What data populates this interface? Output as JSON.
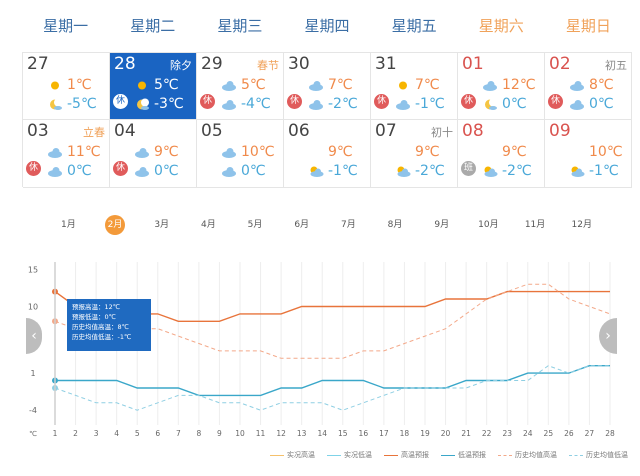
{
  "weekdays": [
    "星期一",
    "星期二",
    "星期三",
    "星期四",
    "星期五",
    "星期六",
    "星期日"
  ],
  "calendar": [
    {
      "day": "27",
      "lunar": "",
      "lunar_festival": false,
      "badge": "",
      "high": "1℃",
      "low": "-5℃",
      "hi_icon": "sun",
      "lo_icon": "moon",
      "selected": false,
      "holiday": false
    },
    {
      "day": "28",
      "lunar": "除夕",
      "lunar_festival": false,
      "badge": "休",
      "high": "5℃",
      "low": "-3℃",
      "hi_icon": "sun",
      "lo_icon": "moon",
      "selected": true,
      "holiday": false
    },
    {
      "day": "29",
      "lunar": "春节",
      "lunar_festival": true,
      "badge": "休",
      "high": "5℃",
      "low": "-4℃",
      "hi_icon": "cloud",
      "lo_icon": "cloud",
      "selected": false,
      "holiday": false
    },
    {
      "day": "30",
      "lunar": "",
      "lunar_festival": false,
      "badge": "休",
      "high": "7℃",
      "low": "-2℃",
      "hi_icon": "cloud",
      "lo_icon": "cloud",
      "selected": false,
      "holiday": false
    },
    {
      "day": "31",
      "lunar": "",
      "lunar_festival": false,
      "badge": "休",
      "high": "7℃",
      "low": "-1℃",
      "hi_icon": "sun",
      "lo_icon": "cloud",
      "selected": false,
      "holiday": false
    },
    {
      "day": "01",
      "lunar": "",
      "lunar_festival": false,
      "badge": "休",
      "high": "12℃",
      "low": "0℃",
      "hi_icon": "cloud",
      "lo_icon": "moon",
      "selected": false,
      "holiday": true
    },
    {
      "day": "02",
      "lunar": "初五",
      "lunar_festival": false,
      "badge": "休",
      "high": "8℃",
      "low": "0℃",
      "hi_icon": "cloud",
      "lo_icon": "cloud",
      "selected": false,
      "holiday": true
    },
    {
      "day": "03",
      "lunar": "立春",
      "lunar_festival": true,
      "badge": "休",
      "high": "11℃",
      "low": "0℃",
      "hi_icon": "cloud",
      "lo_icon": "cloud",
      "selected": false,
      "holiday": false
    },
    {
      "day": "04",
      "lunar": "",
      "lunar_festival": false,
      "badge": "休",
      "high": "9℃",
      "low": "0℃",
      "hi_icon": "cloud",
      "lo_icon": "cloud",
      "selected": false,
      "holiday": false
    },
    {
      "day": "05",
      "lunar": "",
      "lunar_festival": false,
      "badge": "",
      "high": "10℃",
      "low": "0℃",
      "hi_icon": "cloud",
      "lo_icon": "cloud",
      "selected": false,
      "holiday": false
    },
    {
      "day": "06",
      "lunar": "",
      "lunar_festival": false,
      "badge": "",
      "high": "9℃",
      "low": "-1℃",
      "hi_icon": "",
      "lo_icon": "partly",
      "selected": false,
      "holiday": false
    },
    {
      "day": "07",
      "lunar": "初十",
      "lunar_festival": false,
      "badge": "",
      "high": "9℃",
      "low": "-2℃",
      "hi_icon": "",
      "lo_icon": "partly",
      "selected": false,
      "holiday": false
    },
    {
      "day": "08",
      "lunar": "",
      "lunar_festival": false,
      "badge": "班",
      "high": "9℃",
      "low": "-2℃",
      "hi_icon": "",
      "lo_icon": "partly",
      "selected": false,
      "holiday": true
    },
    {
      "day": "09",
      "lunar": "",
      "lunar_festival": false,
      "badge": "",
      "high": "10℃",
      "low": "-1℃",
      "hi_icon": "",
      "lo_icon": "partly",
      "selected": false,
      "holiday": true
    }
  ],
  "months": [
    "1月",
    "2月",
    "3月",
    "4月",
    "5月",
    "6月",
    "7月",
    "8月",
    "9月",
    "10月",
    "11月",
    "12月"
  ],
  "active_month": 1,
  "tooltip": {
    "line1": "预报高温：12℃",
    "line2": "预报低温：0℃",
    "line3": "历史均值高温：8℃",
    "line4": "历史均值低温：-1℃"
  },
  "legend": [
    "实况高温",
    "实况低温",
    "高温预报",
    "低温预报",
    "历史均值高温",
    "历史均值低温"
  ],
  "colors": {
    "actual_high": "#f5c16c",
    "actual_low": "#7fd3e8",
    "forecast_high": "#e8743b",
    "forecast_low": "#3aa7c9",
    "hist_high": "#f3a98a",
    "hist_low": "#8fcfe3"
  },
  "chart_data": {
    "type": "line",
    "x": [
      1,
      2,
      3,
      4,
      5,
      6,
      7,
      8,
      9,
      10,
      11,
      12,
      13,
      14,
      15,
      16,
      17,
      18,
      19,
      20,
      21,
      22,
      23,
      24,
      25,
      26,
      27,
      28
    ],
    "xlabel": "",
    "ylabel": "℃",
    "y_ticks": [
      15,
      10,
      1,
      -4
    ],
    "ylim": [
      -6,
      16
    ],
    "series": [
      {
        "name": "高温预报",
        "values": [
          12,
          10,
          9,
          9,
          9,
          9,
          8,
          8,
          8,
          9,
          9,
          9,
          10,
          10,
          10,
          10,
          10,
          10,
          10,
          11,
          11,
          11,
          12,
          12,
          12,
          12,
          12,
          12
        ],
        "style": "solid"
      },
      {
        "name": "低温预报",
        "values": [
          0,
          0,
          0,
          0,
          -1,
          -1,
          -1,
          -2,
          -2,
          -2,
          -2,
          -1,
          -1,
          0,
          0,
          0,
          -1,
          -1,
          -1,
          -1,
          0,
          0,
          0,
          1,
          1,
          1,
          2,
          2
        ],
        "style": "solid"
      },
      {
        "name": "历史均值高温",
        "values": [
          8,
          7,
          7,
          7,
          7,
          7,
          6,
          5,
          4,
          4,
          4,
          3,
          3,
          3,
          3,
          4,
          4,
          5,
          6,
          7,
          9,
          11,
          12,
          13,
          13,
          11,
          10,
          9
        ],
        "style": "dashed"
      },
      {
        "name": "历史均值低温",
        "values": [
          -1,
          -2,
          -3,
          -3,
          -4,
          -3,
          -2,
          -2,
          -3,
          -3,
          -4,
          -3,
          -3,
          -3,
          -4,
          -3,
          -2,
          -1,
          -1,
          -1,
          -1,
          0,
          0,
          0,
          2,
          1,
          2,
          2
        ],
        "style": "dashed"
      }
    ]
  }
}
